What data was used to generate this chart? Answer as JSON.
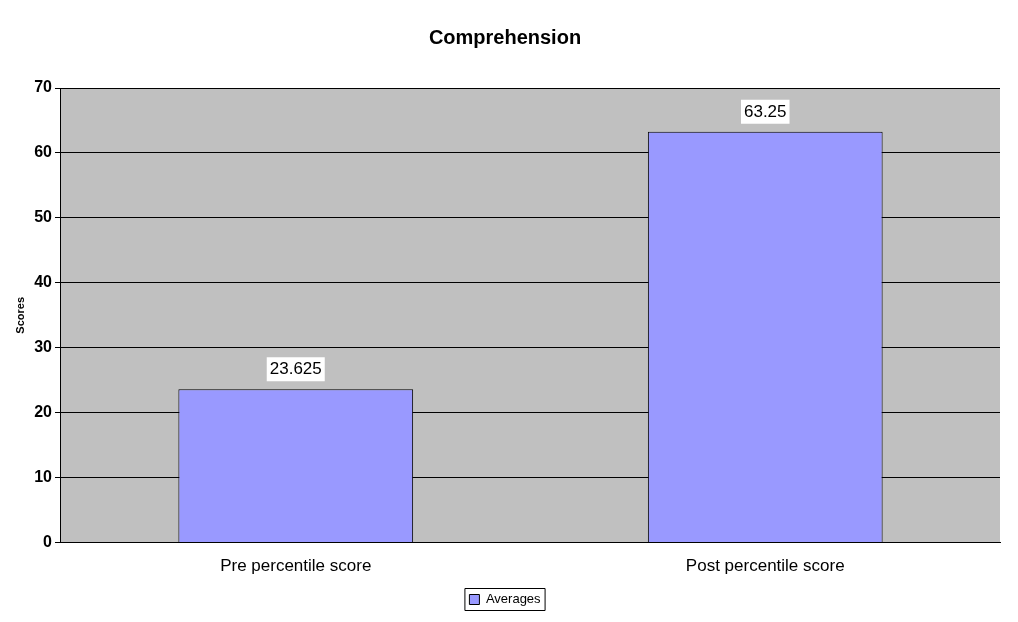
{
  "chart_data": {
    "type": "bar",
    "title": "Comprehension",
    "ylabel": "Scores",
    "categories": [
      "Pre percentile score",
      "Post percentile score"
    ],
    "series": [
      {
        "name": "Averages",
        "color": "#9999ff",
        "values": [
          23.625,
          63.25
        ]
      }
    ],
    "ylim": [
      0,
      70
    ],
    "yticks": [
      0,
      10,
      20,
      30,
      40,
      50,
      60,
      70
    ],
    "grid": "y",
    "legend": "bottom",
    "data_labels": true
  }
}
